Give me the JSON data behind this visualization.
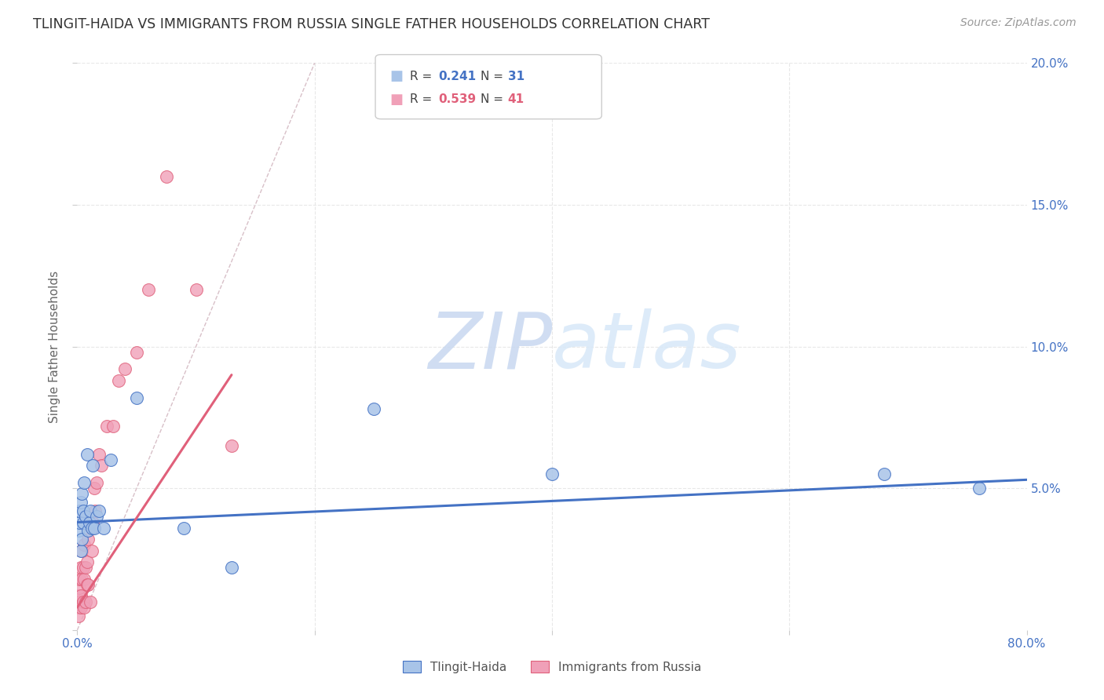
{
  "title": "TLINGIT-HAIDA VS IMMIGRANTS FROM RUSSIA SINGLE FATHER HOUSEHOLDS CORRELATION CHART",
  "source": "Source: ZipAtlas.com",
  "ylabel": "Single Father Households",
  "legend_label1": "Tlingit-Haida",
  "legend_label2": "Immigrants from Russia",
  "color_blue": "#a8c4e8",
  "color_pink": "#f0a0b8",
  "color_blue_dark": "#4472c4",
  "color_pink_dark": "#e0607a",
  "xlim": [
    0.0,
    0.8
  ],
  "ylim": [
    0.0,
    0.2
  ],
  "blue_scatter_x": [
    0.001,
    0.002,
    0.002,
    0.003,
    0.003,
    0.004,
    0.004,
    0.005,
    0.005,
    0.006,
    0.007,
    0.008,
    0.009,
    0.01,
    0.011,
    0.012,
    0.013,
    0.014,
    0.016,
    0.018,
    0.022,
    0.028,
    0.05,
    0.09,
    0.13,
    0.25,
    0.4,
    0.68,
    0.76
  ],
  "blue_scatter_y": [
    0.035,
    0.038,
    0.042,
    0.028,
    0.045,
    0.032,
    0.048,
    0.038,
    0.042,
    0.052,
    0.04,
    0.062,
    0.035,
    0.038,
    0.042,
    0.036,
    0.058,
    0.036,
    0.04,
    0.042,
    0.036,
    0.06,
    0.082,
    0.036,
    0.022,
    0.078,
    0.055,
    0.055,
    0.05
  ],
  "pink_scatter_x": [
    0.001,
    0.001,
    0.001,
    0.002,
    0.002,
    0.002,
    0.003,
    0.003,
    0.003,
    0.004,
    0.004,
    0.005,
    0.005,
    0.006,
    0.006,
    0.006,
    0.007,
    0.007,
    0.008,
    0.008,
    0.009,
    0.009,
    0.01,
    0.011,
    0.012,
    0.012,
    0.013,
    0.014,
    0.015,
    0.016,
    0.018,
    0.02,
    0.025,
    0.03,
    0.035,
    0.04,
    0.05,
    0.06,
    0.075,
    0.1,
    0.13
  ],
  "pink_scatter_y": [
    0.008,
    0.012,
    0.005,
    0.015,
    0.01,
    0.018,
    0.012,
    0.008,
    0.022,
    0.018,
    0.028,
    0.022,
    0.01,
    0.018,
    0.03,
    0.008,
    0.022,
    0.01,
    0.024,
    0.016,
    0.032,
    0.016,
    0.038,
    0.01,
    0.028,
    0.036,
    0.038,
    0.05,
    0.042,
    0.052,
    0.062,
    0.058,
    0.072,
    0.072,
    0.088,
    0.092,
    0.098,
    0.12,
    0.16,
    0.12,
    0.065
  ],
  "blue_trend_x": [
    0.0,
    0.8
  ],
  "blue_trend_y": [
    0.038,
    0.053
  ],
  "pink_trend_x": [
    0.0,
    0.13
  ],
  "pink_trend_y": [
    0.008,
    0.09
  ],
  "diag_line_x": [
    0.0,
    0.2
  ],
  "diag_line_y": [
    0.0,
    0.2
  ],
  "background_color": "#ffffff",
  "grid_color": "#e8e8e8"
}
